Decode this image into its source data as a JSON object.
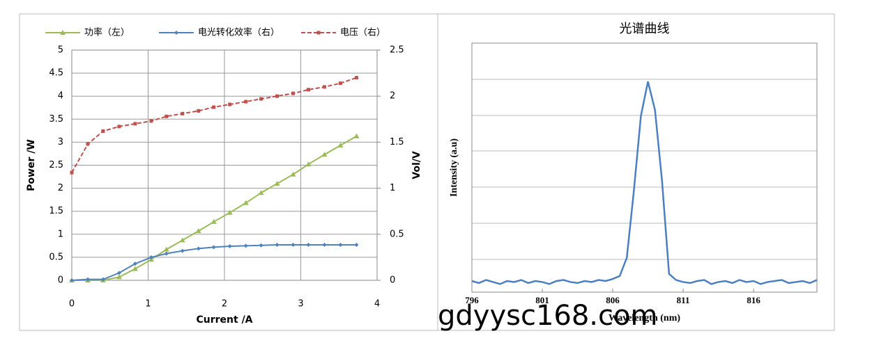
{
  "chart_data": [
    {
      "type": "line",
      "x": [
        0,
        0.21,
        0.41,
        0.62,
        0.83,
        1.04,
        1.24,
        1.45,
        1.66,
        1.86,
        2.07,
        2.28,
        2.48,
        2.69,
        2.9,
        3.1,
        3.31,
        3.52,
        3.73
      ],
      "series": [
        {
          "name": "功率（左）",
          "color": "#9bbb59",
          "marker": "triangle",
          "dash": false,
          "axis": "y",
          "values": [
            0,
            0,
            0,
            0.07,
            0.25,
            0.45,
            0.67,
            0.87,
            1.07,
            1.27,
            1.47,
            1.68,
            1.9,
            2.1,
            2.3,
            2.52,
            2.73,
            2.93,
            3.13
          ]
        },
        {
          "name": "电光转化效率（右）",
          "color": "#4f81bd",
          "marker": "diamond",
          "dash": false,
          "axis": "y2",
          "values": [
            0,
            0.01,
            0.01,
            0.08,
            0.18,
            0.25,
            0.29,
            0.32,
            0.345,
            0.36,
            0.37,
            0.375,
            0.38,
            0.385,
            0.385,
            0.385,
            0.385,
            0.385,
            0.385
          ]
        },
        {
          "name": "电压（右）",
          "color": "#c0504d",
          "marker": "square",
          "dash": true,
          "axis": "y2",
          "values": [
            1.17,
            1.48,
            1.62,
            1.67,
            1.7,
            1.73,
            1.78,
            1.81,
            1.84,
            1.88,
            1.91,
            1.94,
            1.97,
            2.0,
            2.03,
            2.07,
            2.1,
            2.14,
            2.2
          ]
        }
      ],
      "x_label": "Current /A",
      "y_label": "Power /W",
      "y2_label": "Vol/V",
      "xlim": [
        0,
        4
      ],
      "xticks": [
        0,
        1,
        2,
        3,
        4
      ],
      "ylim": [
        0,
        5
      ],
      "yticks": [
        0,
        0.5,
        1,
        1.5,
        2,
        2.5,
        3,
        3.5,
        4,
        4.5,
        5
      ],
      "y2lim": [
        0,
        2.5
      ],
      "y2ticks": [
        0,
        0.5,
        1,
        1.5,
        2,
        2.5
      ],
      "grid": true,
      "legend": "top"
    },
    {
      "type": "line",
      "title": "光谱曲线",
      "x": [
        796,
        796.5,
        797,
        797.5,
        798,
        798.5,
        799,
        799.5,
        800,
        800.5,
        801,
        801.5,
        802,
        802.5,
        803,
        803.5,
        804,
        804.5,
        805,
        805.5,
        806,
        806.5,
        807,
        807.5,
        808,
        808.5,
        809,
        809.5,
        810,
        810.5,
        811,
        811.5,
        812,
        812.5,
        813,
        813.5,
        814,
        814.5,
        815,
        815.5,
        816,
        816.5,
        817,
        817.5,
        818,
        818.5,
        819,
        819.5,
        820,
        820.5
      ],
      "series": [
        {
          "color": "#4a7fc1",
          "marker": "none",
          "dash": false,
          "axis": "y",
          "values": [
            0.005,
            -0.005,
            0.01,
            0,
            -0.01,
            0.005,
            0,
            0.01,
            -0.005,
            0.005,
            0,
            -0.01,
            0.005,
            0.01,
            0,
            -0.005,
            0.005,
            0,
            0.01,
            0.005,
            0.015,
            0.03,
            0.12,
            0.45,
            0.82,
            0.99,
            0.85,
            0.5,
            0.04,
            0.01,
            0,
            -0.005,
            0.005,
            0.01,
            -0.01,
            0,
            0.005,
            -0.005,
            0.01,
            0,
            0.005,
            -0.01,
            0,
            0.005,
            0.01,
            -0.005,
            0,
            0.005,
            -0.005,
            0.01
          ]
        }
      ],
      "x_label": "Wavelength (nm)",
      "y_label": "Intensity (a.u)",
      "xlim": [
        796,
        820.5
      ],
      "xticks": [
        796,
        801,
        806,
        811,
        816
      ],
      "ylim": [
        -0.05,
        1.18
      ],
      "grid": false
    }
  ],
  "watermark": "gdyysc168.com"
}
